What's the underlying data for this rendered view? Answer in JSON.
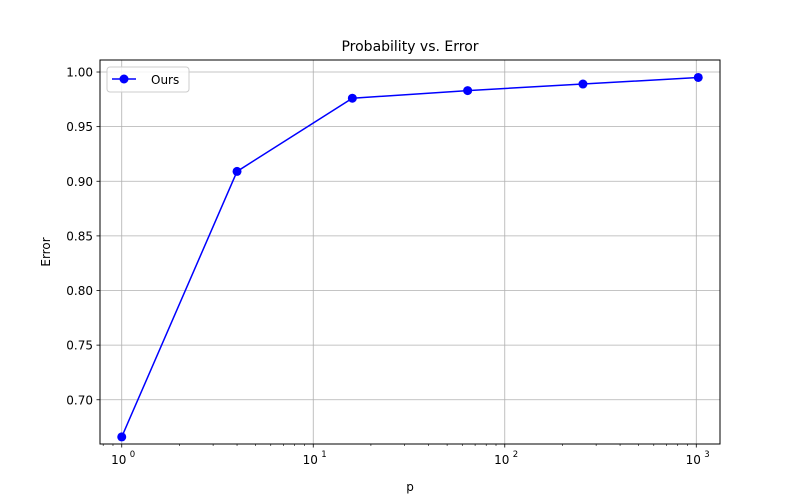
{
  "chart_data": {
    "type": "line",
    "title": "Probability vs. Error",
    "xlabel": "p",
    "ylabel": "Error",
    "xscale": "log",
    "xlim": [
      0.77,
      1330
    ],
    "ylim": [
      0.6595,
      1.011
    ],
    "grid": true,
    "legend_position": "upper-left",
    "x_ticks": [
      {
        "value": 1,
        "base": "10",
        "exp": "0"
      },
      {
        "value": 10,
        "base": "10",
        "exp": "1"
      },
      {
        "value": 100,
        "base": "10",
        "exp": "2"
      },
      {
        "value": 1000,
        "base": "10",
        "exp": "3"
      }
    ],
    "y_ticks": [
      "0.70",
      "0.75",
      "0.80",
      "0.85",
      "0.90",
      "0.95",
      "1.00"
    ],
    "series": [
      {
        "name": "Ours",
        "color": "#0000ff",
        "marker": "circle",
        "x": [
          1,
          4,
          16,
          64,
          256,
          1024
        ],
        "y": [
          0.666,
          0.909,
          0.976,
          0.983,
          0.989,
          0.995
        ]
      }
    ]
  }
}
